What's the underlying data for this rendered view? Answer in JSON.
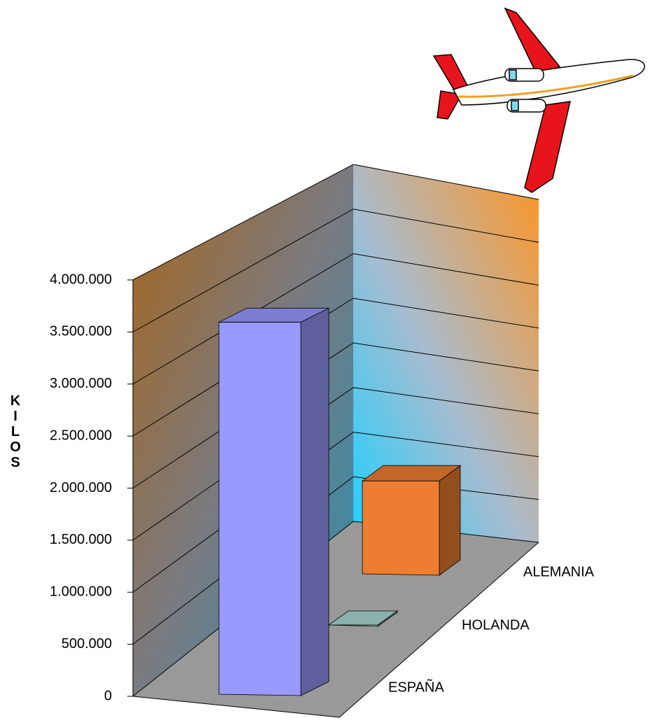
{
  "chart_data": {
    "type": "bar3d",
    "y_label": "KILOS",
    "categories": [
      "ESPAÑA",
      "HOLANDA",
      "ALEMANIA"
    ],
    "values": [
      3600000,
      0,
      1000000
    ],
    "colors": [
      "#9999ff",
      "#a8d8d4",
      "#ed7d31"
    ],
    "ylim": [
      0,
      4000000
    ],
    "yticks": [
      0,
      {
        "value": 500000,
        "label": "500.000"
      },
      {
        "value": 1000000,
        "label": "1.000.000"
      },
      {
        "value": 1500000,
        "label": "1.500.000"
      },
      {
        "value": 2000000,
        "label": "2.000.000"
      },
      {
        "value": 2500000,
        "label": "2.500.000"
      },
      {
        "value": 3000000,
        "label": "3.000.000"
      },
      {
        "value": 3500000,
        "label": "3.500.000"
      },
      {
        "value": 4000000,
        "label": "4.000.000"
      }
    ],
    "grid": true
  }
}
